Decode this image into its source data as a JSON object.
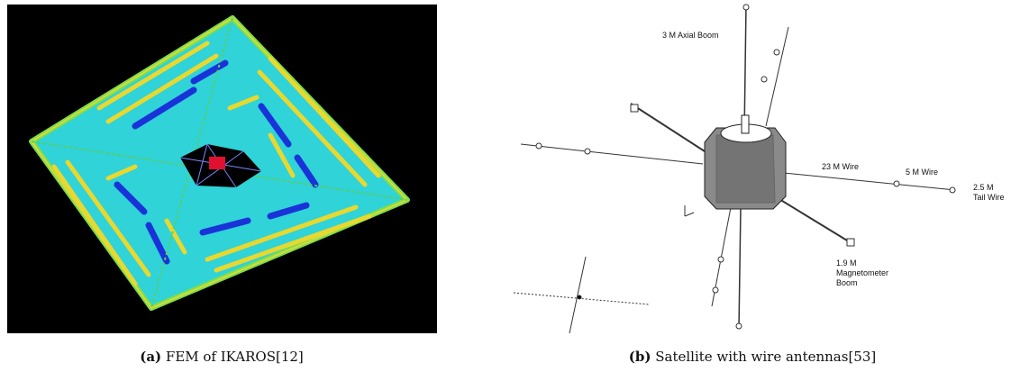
{
  "figures": [
    {
      "label": "(a)",
      "caption": "FEM of IKAROS[12]"
    },
    {
      "label": "(b)",
      "caption": "Satellite with wire antennas[53]",
      "annotations": {
        "axial_boom": "3 M Axial Boom",
        "wire_23": "23 M Wire",
        "wire_5": "5 M Wire",
        "tail_wire": [
          "2.5 M",
          "Tail Wire"
        ],
        "magnetometer": [
          "1.9 M",
          "Magnetometer",
          "Boom"
        ]
      }
    }
  ]
}
